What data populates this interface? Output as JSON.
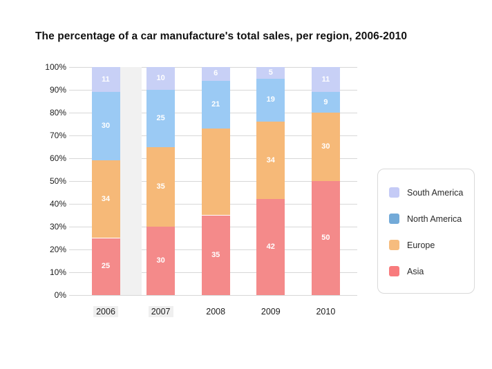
{
  "chart": {
    "title": "The percentage of a car manufacture's total sales, per region, 2006-2010"
  },
  "chart_data": {
    "type": "bar",
    "stacked": true,
    "title": "The percentage of a car manufacture's total sales, per region, 2006-2010",
    "categories": [
      "2006",
      "2007",
      "2008",
      "2009",
      "2010"
    ],
    "series": [
      {
        "name": "Asia",
        "color": "#F48A8A",
        "values": [
          25,
          30,
          35,
          42,
          50
        ],
        "labels": [
          "25",
          "30",
          "35",
          "42",
          "50"
        ]
      },
      {
        "name": "Europe",
        "color": "#F6B978",
        "values": [
          34,
          35,
          38,
          34,
          30
        ],
        "labels": [
          "34",
          "35",
          "",
          "34",
          "30"
        ]
      },
      {
        "name": "North America",
        "color": "#9BCAF4",
        "values": [
          30,
          25,
          21,
          19,
          9
        ],
        "labels": [
          "30",
          "25",
          "21",
          "19",
          "9"
        ]
      },
      {
        "name": "South America",
        "color": "#C8D0F6",
        "values": [
          11,
          10,
          6,
          5,
          11
        ],
        "labels": [
          "11",
          "10",
          "6",
          "5",
          "11"
        ]
      }
    ],
    "xlabel": "",
    "ylabel": "",
    "ylim": [
      0,
      100
    ],
    "yticks": [
      "0%",
      "10%",
      "20%",
      "30%",
      "40%",
      "50%",
      "60%",
      "70%",
      "80%",
      "90%",
      "100%"
    ],
    "grid": "horizontal",
    "bar_label_color": "#ffffff",
    "legend": {
      "position": "right",
      "items": [
        {
          "label": "South America",
          "swatch": "#C5CBF6"
        },
        {
          "label": "North America",
          "swatch": "#73AAD8"
        },
        {
          "label": "Europe",
          "swatch": "#F6BC7E"
        },
        {
          "label": "Asia",
          "swatch": "#F87B7D"
        }
      ]
    }
  }
}
